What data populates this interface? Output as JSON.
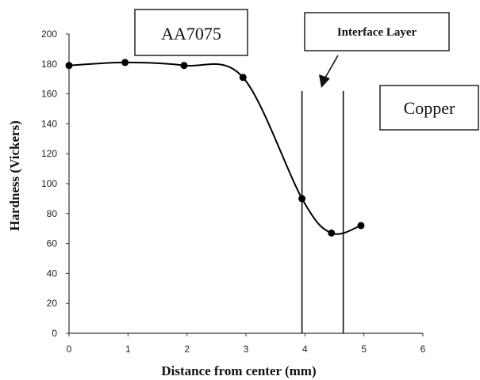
{
  "chart_data": {
    "type": "line",
    "title": "",
    "xlabel": "Distance from center (mm)",
    "ylabel": "Hardness (Vickers)",
    "xlim": [
      0,
      6
    ],
    "ylim": [
      0,
      200
    ],
    "x_ticks": [
      "0",
      "1",
      "2",
      "3",
      "4",
      "5",
      "6"
    ],
    "y_ticks": [
      "0",
      "20",
      "40",
      "60",
      "80",
      "100",
      "120",
      "140",
      "160",
      "180",
      "200"
    ],
    "grid": false,
    "legend": "none",
    "smooth": true,
    "series": [
      {
        "x": [
          0,
          0.95,
          1.95,
          2.95,
          3.95,
          4.45,
          4.95
        ],
        "y": [
          179,
          181,
          179,
          171,
          90,
          67,
          72
        ]
      }
    ],
    "interface_lines": [
      3.95,
      4.65
    ],
    "annotations": [
      {
        "text": "AA7075"
      },
      {
        "text": "Interface Layer"
      },
      {
        "text": "Copper"
      }
    ]
  }
}
